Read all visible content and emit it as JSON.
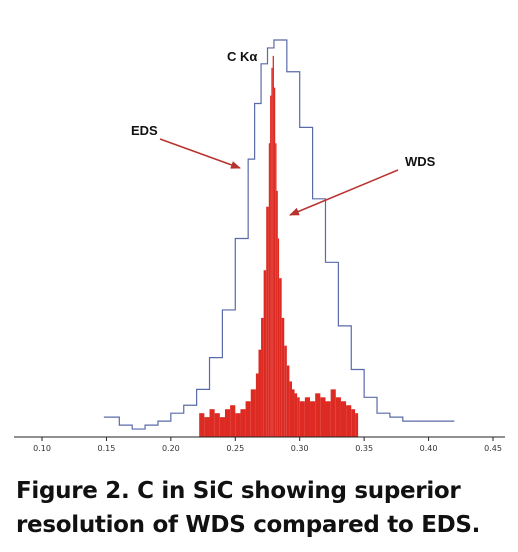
{
  "chart_data": {
    "type": "line",
    "title": "",
    "xlabel": "",
    "ylabel": "",
    "xlim": [
      0.1,
      0.45
    ],
    "ylim": [
      0,
      100
    ],
    "grid": false,
    "x_ticks": [
      "0.10",
      "0.15",
      "0.20",
      "0.25",
      "0.30",
      "0.35",
      "0.40",
      "0.45"
    ],
    "annotations": [
      {
        "text": "C Kα"
      },
      {
        "text": "EDS"
      },
      {
        "text": "WDS"
      }
    ],
    "series": [
      {
        "style": "step",
        "color": "#5566aa",
        "x": [
          0.148,
          0.16,
          0.17,
          0.18,
          0.19,
          0.2,
          0.21,
          0.22,
          0.23,
          0.24,
          0.25,
          0.26,
          0.265,
          0.27,
          0.275,
          0.28,
          0.285,
          0.29,
          0.3,
          0.31,
          0.32,
          0.33,
          0.34,
          0.35,
          0.36,
          0.37,
          0.38,
          0.39,
          0.4,
          0.41
        ],
        "values": [
          5,
          3,
          2,
          3,
          4,
          6,
          8,
          12,
          20,
          32,
          50,
          70,
          84,
          94,
          98,
          100,
          100,
          92,
          78,
          60,
          44,
          28,
          17,
          10,
          6,
          5,
          4,
          4,
          4,
          4
        ]
      },
      {
        "style": "bars",
        "color": "#dd2a22",
        "x": [
          0.222,
          0.226,
          0.23,
          0.234,
          0.238,
          0.242,
          0.246,
          0.25,
          0.254,
          0.258,
          0.262,
          0.266,
          0.268,
          0.27,
          0.272,
          0.274,
          0.276,
          0.277,
          0.278,
          0.279,
          0.28,
          0.281,
          0.282,
          0.283,
          0.284,
          0.286,
          0.288,
          0.29,
          0.292,
          0.294,
          0.296,
          0.298,
          0.3,
          0.304,
          0.308,
          0.312,
          0.316,
          0.32,
          0.324,
          0.328,
          0.332,
          0.336,
          0.34,
          0.343
        ],
        "values": [
          6,
          5,
          7,
          6,
          5,
          7,
          8,
          6,
          7,
          9,
          12,
          16,
          22,
          30,
          42,
          58,
          74,
          86,
          93,
          96,
          88,
          74,
          62,
          50,
          40,
          30,
          23,
          18,
          14,
          12,
          11,
          10,
          9,
          10,
          9,
          11,
          10,
          9,
          12,
          10,
          9,
          8,
          7,
          6
        ]
      }
    ]
  },
  "caption": {
    "line1": "Figure 2. C in SiC showing superior",
    "line2": "resolution of WDS compared to EDS."
  }
}
